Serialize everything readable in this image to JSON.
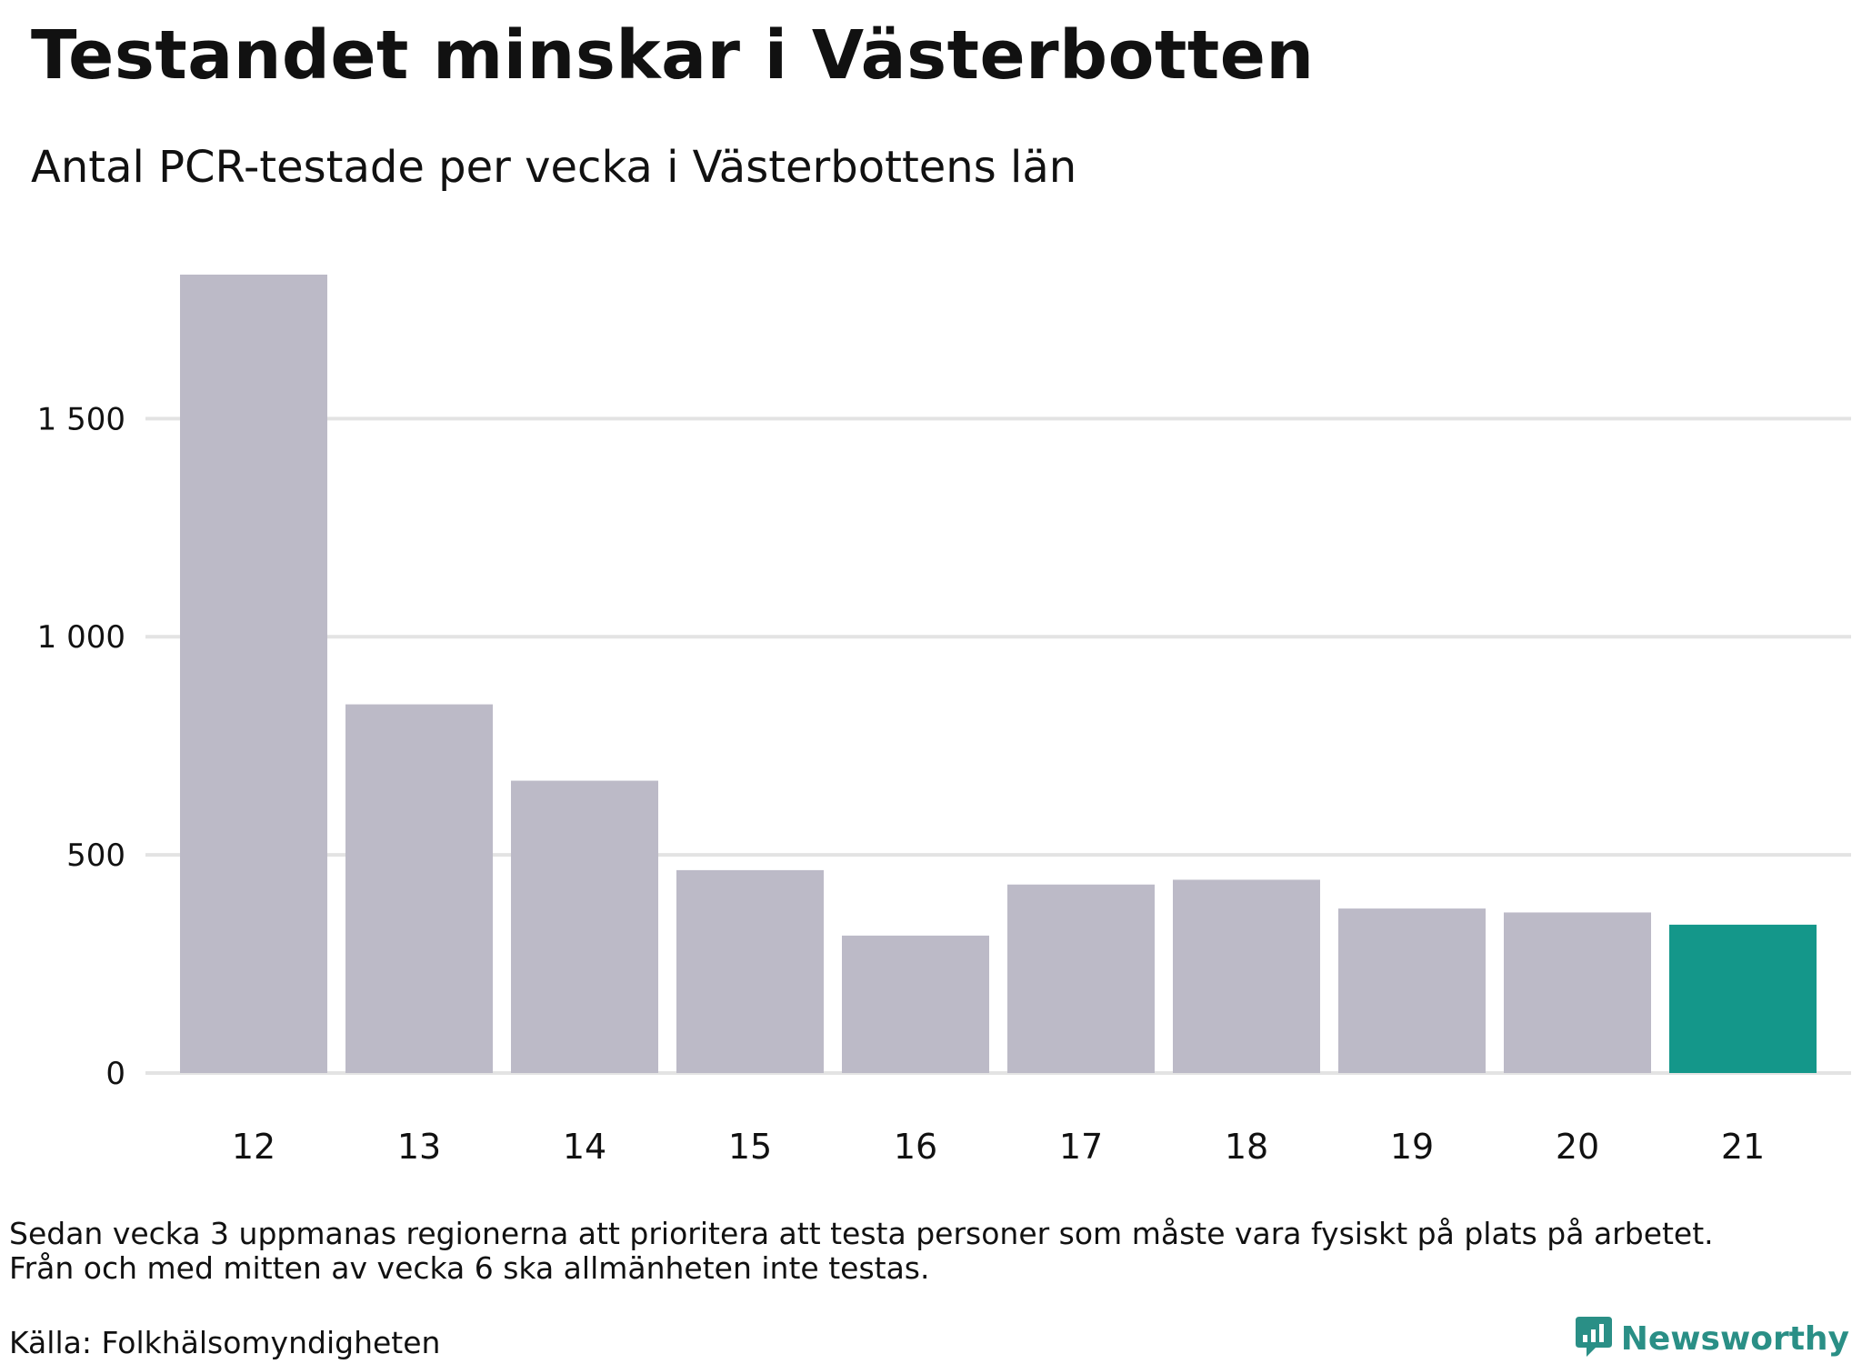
{
  "title": "Testandet minskar i Västerbotten",
  "subtitle": "Antal PCR-testade per vecka i Västerbottens län",
  "note_lines": [
    "Sedan vecka 3 uppmanas regionerna att prioritera att testa personer som måste vara fysiskt på plats på arbetet.",
    "Från och med mitten av vecka 6 ska allmänheten inte testas."
  ],
  "source": "Källa: Folkhälsomyndigheten",
  "brand": {
    "name": "Newsworthy",
    "icon": "newsworthy-logo-icon",
    "color": "#2a8f86"
  },
  "colors": {
    "bar": "#bcbac7",
    "highlight": "#14978a",
    "grid": "#e3e3e3"
  },
  "chart_data": {
    "type": "bar",
    "title": "Testandet minskar i Västerbotten",
    "subtitle": "Antal PCR-testade per vecka i Västerbottens län",
    "xlabel": "",
    "ylabel": "",
    "categories": [
      "12",
      "13",
      "14",
      "15",
      "16",
      "17",
      "18",
      "19",
      "20",
      "21"
    ],
    "values": [
      1830,
      845,
      670,
      465,
      315,
      432,
      443,
      377,
      368,
      340
    ],
    "highlight_index": 9,
    "ylim": [
      0,
      1830
    ],
    "yticks": [
      0,
      500,
      1000,
      1500
    ],
    "ytick_labels": [
      "0",
      "500",
      "1 000",
      "1 500"
    ],
    "grid": true,
    "legend": "none"
  }
}
